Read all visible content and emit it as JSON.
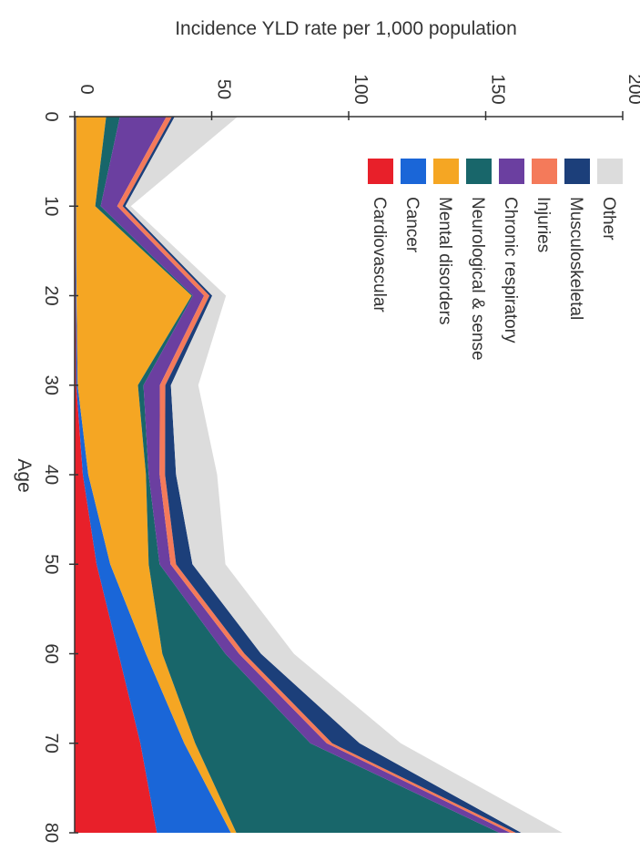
{
  "chart_data": {
    "type": "area",
    "stacked": true,
    "orientation": "rotated-90",
    "title": "",
    "xlabel": "Age",
    "ylabel": "Incidence YLD rate per 1,000 population",
    "xlim": [
      0,
      80
    ],
    "ylim": [
      0,
      200
    ],
    "x_ticks": [
      "0",
      "10",
      "20",
      "30",
      "40",
      "50",
      "60",
      "70",
      "80"
    ],
    "y_ticks": [
      "0",
      "50",
      "100",
      "150",
      "200"
    ],
    "x": [
      0,
      10,
      20,
      30,
      40,
      50,
      60,
      70,
      80
    ],
    "series": [
      {
        "name": "Cardiovascular",
        "color": "#e8202a",
        "values": [
          0.3,
          0.3,
          0.4,
          0.6,
          3,
          8,
          16,
          24,
          30
        ]
      },
      {
        "name": "Cancer",
        "color": "#1a66d8",
        "values": [
          0.2,
          0.2,
          0.3,
          0.5,
          2,
          5,
          10,
          16,
          27
        ]
      },
      {
        "name": "Mental disorders",
        "color": "#f5a623",
        "values": [
          11,
          7,
          42,
          22,
          21,
          14,
          6,
          4,
          2
        ]
      },
      {
        "name": "Neurological & sense",
        "color": "#18666a",
        "values": [
          5,
          2,
          0.5,
          2,
          1,
          4,
          23,
          42,
          96
        ]
      },
      {
        "name": "Chronic respiratory",
        "color": "#6b3fa0",
        "values": [
          17,
          6,
          4,
          6,
          4,
          4,
          5,
          6,
          4
        ]
      },
      {
        "name": "Injuries",
        "color": "#f47a5a",
        "values": [
          2,
          2,
          2,
          2,
          2,
          2,
          2,
          2,
          2
        ]
      },
      {
        "name": "Musculoskeletal",
        "color": "#1c3f7a",
        "values": [
          1,
          1,
          1,
          2,
          4,
          6,
          6,
          10,
          2
        ]
      },
      {
        "name": "Other",
        "color": "#dcdcdc",
        "values": [
          23,
          2,
          5,
          10,
          15,
          12,
          12,
          15,
          15
        ]
      }
    ],
    "legend_position": "top-right",
    "grid": false
  }
}
